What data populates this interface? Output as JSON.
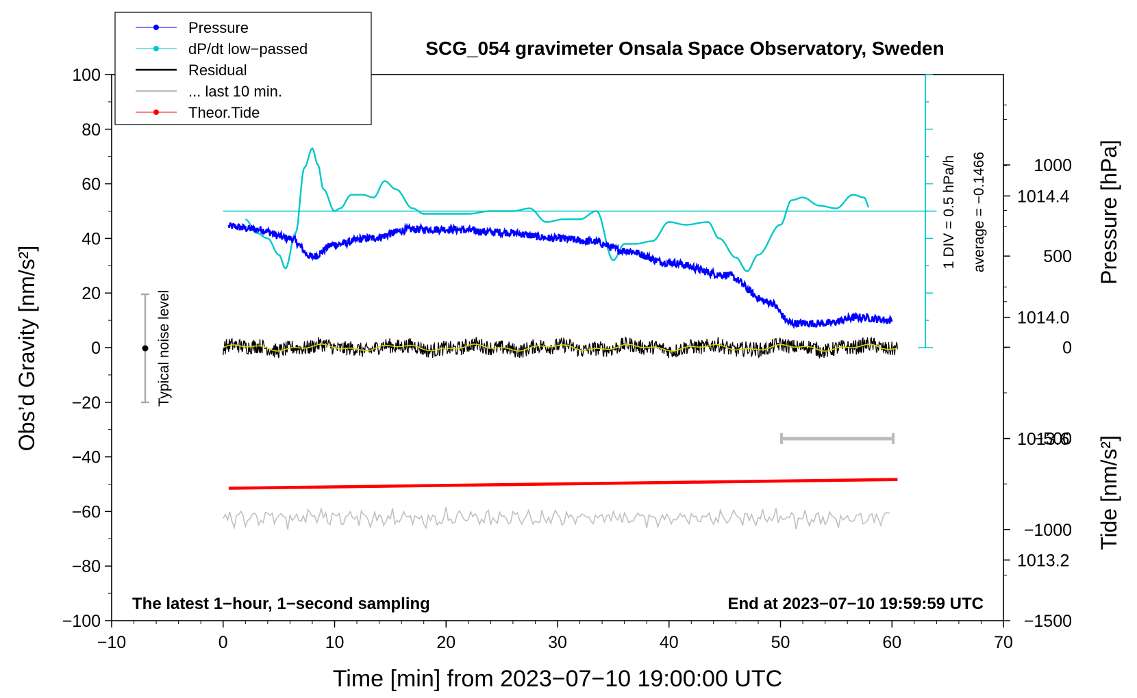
{
  "chart_data": {
    "type": "line",
    "title": "SCG_054 gravimeter Onsala Space Observatory, Sweden",
    "xlabel": "Time [min] from 2023−07−10 19:00:00 UTC",
    "ylabel_left": "Obs’d Gravity [nm/s²]",
    "ylabel_pressure": "Pressure [hPa]",
    "ylabel_tide": "Tide [nm/s²]",
    "xlim": [
      -10,
      70
    ],
    "ylim_left": [
      -100,
      100
    ],
    "x_ticks": [
      "−10",
      "0",
      "10",
      "20",
      "30",
      "40",
      "50",
      "60",
      "70"
    ],
    "x_tick_values": [
      -10,
      0,
      10,
      20,
      30,
      40,
      50,
      60,
      70
    ],
    "y_ticks": [
      "100",
      "80",
      "60",
      "40",
      "20",
      "0",
      "−20",
      "−40",
      "−60",
      "−80",
      "−100"
    ],
    "y_tick_values": [
      100,
      80,
      60,
      40,
      20,
      0,
      -20,
      -40,
      -60,
      -80,
      -100
    ],
    "pressure_axis": {
      "range_hpa": [
        1013.0,
        1014.8
      ],
      "ticks": [
        "1014.4",
        "1014.0",
        "1013.6",
        "1013.2"
      ],
      "tick_values": [
        1014.4,
        1014.0,
        1013.6,
        1013.2
      ]
    },
    "tide_axis": {
      "range": [
        -1500,
        1500
      ],
      "ticks": [
        "1000",
        "500",
        "0",
        "−500",
        "−1000",
        "−1500"
      ],
      "tick_values": [
        1000,
        500,
        0,
        -500,
        -1000,
        -1500
      ]
    },
    "legend": {
      "position": "top-left",
      "items": [
        {
          "label": "Pressure",
          "color": "#0000ff",
          "marker": true
        },
        {
          "label": "dP/dt low−passed",
          "color": "#00c8c8",
          "marker": true
        },
        {
          "label": "Residual",
          "color": "#000000",
          "marker": false
        },
        {
          "label": "... last 10 min.",
          "color": "#bebebe",
          "marker": false
        },
        {
          "label": "Theor.Tide",
          "color": "#ff0000",
          "marker": true
        }
      ]
    },
    "series": [
      {
        "name": "Pressure",
        "color": "#0000ff",
        "unit": "hPa",
        "x": [
          0.5,
          3,
          6,
          8,
          10,
          13,
          17,
          20,
          25,
          30,
          33,
          36,
          40,
          45,
          49,
          51,
          54,
          57,
          60
        ],
        "y": [
          1014.3,
          1014.29,
          1014.26,
          1014.2,
          1014.24,
          1014.26,
          1014.29,
          1014.29,
          1014.28,
          1014.26,
          1014.25,
          1014.22,
          1014.18,
          1014.14,
          1014.05,
          1013.98,
          1013.98,
          1014.0,
          1013.99
        ]
      },
      {
        "name": "dP/dt low−passed",
        "color": "#00c8c8",
        "unit": "nm/s² scale",
        "x": [
          2,
          3,
          4,
          5,
          5.6,
          6.5,
          7.3,
          8,
          8.5,
          9,
          10,
          10.5,
          11.5,
          12.5,
          13.5,
          14.5,
          15.5,
          17,
          18,
          20,
          22,
          24,
          26,
          27.5,
          29,
          30.5,
          32,
          33.5,
          35,
          36,
          37,
          38.5,
          40,
          41.5,
          43.5,
          44.5,
          46,
          47,
          48,
          50,
          51,
          52,
          53.5,
          55,
          56.5,
          57.5,
          58
        ],
        "y": [
          47,
          42,
          40,
          34,
          29,
          42,
          66,
          73,
          67,
          58,
          50,
          51,
          56,
          56,
          55,
          61,
          58,
          51,
          49,
          49,
          49,
          50,
          50,
          51,
          46,
          47,
          47,
          50,
          32,
          38,
          38,
          39,
          46,
          45,
          46,
          40,
          33,
          28,
          34,
          45,
          54,
          55,
          52,
          51,
          56,
          55,
          51
        ]
      },
      {
        "name": "Residual",
        "color": "#000000",
        "note": "noisy around 0 (about ±3 nm/s²) from 0 to 60 min"
      },
      {
        "name": "... last 10 min.",
        "color": "#bebebe",
        "note": "noisy trace around −62 nm/s² from 0 to 60 min"
      },
      {
        "name": "Theor.Tide",
        "color": "#ff0000",
        "x": [
          0.5,
          60.5
        ],
        "y": [
          -51.5,
          -48.3
        ]
      }
    ],
    "annotations": {
      "noise_bar_label": "Typical noise level",
      "div_label": "1 DIV = 0.5 hPa/h",
      "average_label": "average = −0.1466",
      "bottom_left_text": "The latest 1−hour, 1−second sampling",
      "bottom_right_text": "End at 2023−07−10 19:59:59 UTC",
      "scale_bar_range_min": [
        50,
        60
      ]
    }
  }
}
